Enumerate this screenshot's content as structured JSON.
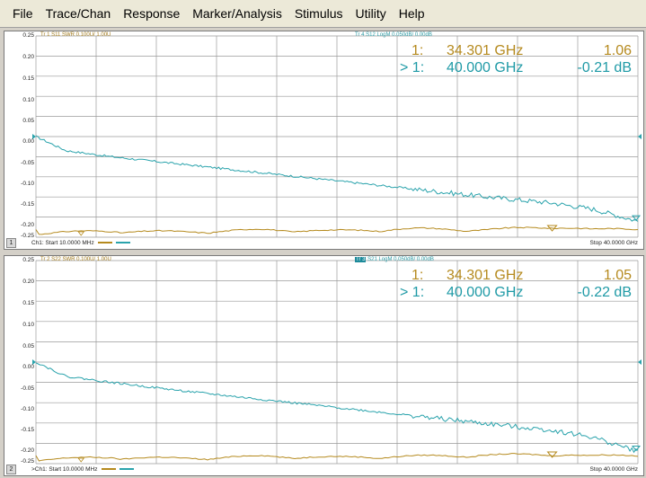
{
  "menu": [
    "File",
    "Trace/Chan",
    "Response",
    "Marker/Analysis",
    "Stimulus",
    "Utility",
    "Help"
  ],
  "y_ticks": [
    "0.25",
    "0.20",
    "0.15",
    "0.10",
    "0.05",
    "0.00",
    "-0.05",
    "-0.10",
    "-0.15",
    "-0.20",
    "-0.25"
  ],
  "colors": {
    "trace_swr": "#b58a1e",
    "trace_logm": "#2aa3ac",
    "grid": "#9a9a9a"
  },
  "panels": [
    {
      "channel": "1",
      "hdr_left": "Tr 1  S11 SWR 0.100U/  1.00U",
      "hdr_right_prefix": "Tr 4",
      "hdr_right_rest": "  S12 LogM 0.050dB/  0.00dB",
      "marker1_label": "1:",
      "marker1_freq": "34.301 GHz",
      "marker1_val": "1.06",
      "marker2_label": "> 1:",
      "marker2_freq": "40.000 GHz",
      "marker2_val": "-0.21 dB",
      "start": "Ch1: Start  10.0000 MHz",
      "stop": "Stop  40.0000 GHz"
    },
    {
      "channel": "2",
      "hdr_left": "Tr 2  S22 SWR 0.100U/  1.00U",
      "hdr_right_prefix": "Tr 3",
      "hdr_right_rest": "  S21 LogM 0.050dB/  0.00dB",
      "marker1_label": "1:",
      "marker1_freq": "34.301 GHz",
      "marker1_val": "1.05",
      "marker2_label": "> 1:",
      "marker2_freq": "40.000 GHz",
      "marker2_val": "-0.22 dB",
      "start": ">Ch1: Start  10.0000 MHz",
      "stop": "Stop  40.0000 GHz"
    }
  ],
  "chart_data": [
    {
      "type": "line",
      "xlabel": "Frequency",
      "x_start": "10.0000 MHz",
      "x_stop": "40.0000 GHz",
      "ylim": [
        -0.25,
        0.25
      ],
      "grid": true,
      "series": [
        {
          "name": "S12 LogM",
          "x_ghz": [
            0.01,
            2,
            5,
            10,
            15,
            20,
            25,
            30,
            34.301,
            37,
            40
          ],
          "values": [
            0.0,
            -0.035,
            -0.05,
            -0.07,
            -0.09,
            -0.11,
            -0.13,
            -0.15,
            -0.165,
            -0.18,
            -0.21
          ]
        },
        {
          "name": "S11 SWR",
          "x_ghz": [
            0.01,
            5,
            10,
            15,
            20,
            25,
            30,
            34.301,
            37,
            40
          ],
          "values": [
            1.0,
            1.02,
            1.01,
            1.03,
            1.02,
            1.04,
            1.03,
            1.06,
            1.03,
            1.05
          ]
        }
      ]
    },
    {
      "type": "line",
      "xlabel": "Frequency",
      "x_start": "10.0000 MHz",
      "x_stop": "40.0000 GHz",
      "ylim": [
        -0.25,
        0.25
      ],
      "grid": true,
      "series": [
        {
          "name": "S21 LogM",
          "x_ghz": [
            0.01,
            2,
            5,
            10,
            15,
            20,
            25,
            30,
            34.301,
            37,
            40
          ],
          "values": [
            0.0,
            -0.035,
            -0.05,
            -0.072,
            -0.092,
            -0.112,
            -0.132,
            -0.152,
            -0.168,
            -0.185,
            -0.22
          ]
        },
        {
          "name": "S22 SWR",
          "x_ghz": [
            0.01,
            5,
            10,
            15,
            20,
            25,
            30,
            34.301,
            37,
            40
          ],
          "values": [
            1.0,
            1.02,
            1.01,
            1.03,
            1.02,
            1.03,
            1.04,
            1.05,
            1.03,
            1.05
          ]
        }
      ]
    }
  ]
}
